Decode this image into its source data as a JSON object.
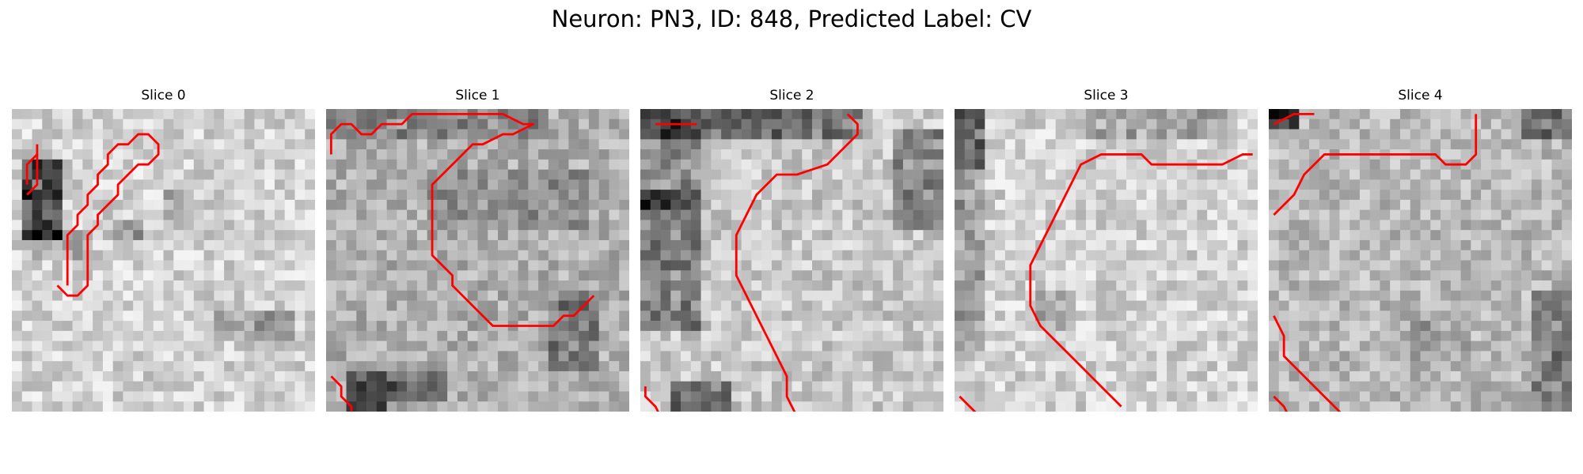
{
  "figure": {
    "title": "Neuron: PN3, ID: 848, Predicted Label: CV",
    "contour_color": "#ff0000",
    "panels": [
      {
        "title": "Slice 0",
        "seed": 11,
        "base": 210,
        "dark": [
          [
            1,
            5,
            4,
            8,
            -150
          ],
          [
            10,
            11,
            3,
            2,
            -70
          ],
          [
            2,
            12,
            6,
            3,
            -40
          ],
          [
            20,
            20,
            8,
            3,
            -55
          ],
          [
            15,
            8,
            3,
            3,
            -45
          ]
        ],
        "contours": [
          [
            [
              5,
              17
            ],
            [
              5,
              12
            ],
            [
              6,
              11
            ],
            [
              6,
              10
            ],
            [
              7,
              9
            ],
            [
              7,
              8
            ],
            [
              8,
              7
            ],
            [
              8,
              6
            ],
            [
              9,
              5
            ],
            [
              9,
              4
            ],
            [
              10,
              3
            ],
            [
              11,
              3
            ],
            [
              12,
              2
            ],
            [
              13,
              2
            ],
            [
              14,
              3
            ],
            [
              14,
              4
            ],
            [
              13,
              5
            ],
            [
              12,
              5
            ],
            [
              11,
              6
            ],
            [
              10,
              7
            ],
            [
              10,
              8
            ],
            [
              9,
              9
            ],
            [
              8,
              10
            ],
            [
              8,
              11
            ],
            [
              7,
              12
            ],
            [
              7,
              17
            ],
            [
              6,
              18
            ],
            [
              5,
              18
            ],
            [
              4,
              17
            ]
          ],
          [
            [
              1,
              7
            ],
            [
              1,
              5
            ],
            [
              2,
              4
            ],
            [
              2,
              7
            ],
            [
              1,
              8
            ]
          ],
          [
            [
              2,
              3
            ],
            [
              2,
              4
            ],
            [
              2,
              3
            ]
          ]
        ]
      },
      {
        "title": "Slice 1",
        "seed": 23,
        "base": 175,
        "dark": [
          [
            2,
            26,
            4,
            8,
            -120
          ],
          [
            6,
            26,
            6,
            3,
            -80
          ],
          [
            22,
            18,
            5,
            8,
            -60
          ],
          [
            10,
            6,
            16,
            6,
            -30
          ],
          [
            0,
            0,
            22,
            3,
            -40
          ]
        ],
        "contours": [
          [
            [
              0,
              4
            ],
            [
              0,
              2
            ],
            [
              1,
              1
            ],
            [
              2,
              1
            ],
            [
              3,
              2
            ],
            [
              4,
              2
            ],
            [
              5,
              1
            ],
            [
              7,
              1
            ],
            [
              8,
              0
            ],
            [
              13,
              0
            ],
            [
              16,
              0
            ],
            [
              17,
              0
            ],
            [
              19,
              1
            ],
            [
              20,
              1
            ],
            [
              18,
              2
            ],
            [
              17,
              2
            ],
            [
              15,
              3
            ],
            [
              14,
              3
            ],
            [
              13,
              4
            ],
            [
              12,
              5
            ],
            [
              11,
              6
            ],
            [
              10,
              7
            ],
            [
              10,
              8
            ],
            [
              10,
              10
            ],
            [
              10,
              14
            ],
            [
              11,
              15
            ],
            [
              12,
              16
            ],
            [
              12,
              17
            ],
            [
              13,
              18
            ],
            [
              14,
              19
            ],
            [
              15,
              20
            ],
            [
              16,
              21
            ],
            [
              18,
              21
            ],
            [
              19,
              21
            ],
            [
              22,
              21
            ],
            [
              23,
              20
            ],
            [
              24,
              20
            ],
            [
              25,
              19
            ],
            [
              26,
              18
            ]
          ],
          [
            [
              0,
              26
            ],
            [
              1,
              27
            ],
            [
              1,
              28
            ],
            [
              2,
              29
            ],
            [
              2,
              30
            ],
            [
              3,
              31
            ],
            [
              4,
              32
            ],
            [
              5,
              33
            ],
            [
              6,
              34
            ],
            [
              7,
              35
            ]
          ]
        ]
      },
      {
        "title": "Slice 2",
        "seed": 37,
        "base": 200,
        "dark": [
          [
            0,
            0,
            22,
            3,
            -90
          ],
          [
            0,
            0,
            6,
            10,
            -60
          ],
          [
            0,
            8,
            6,
            14,
            -80
          ],
          [
            3,
            27,
            6,
            5,
            -100
          ],
          [
            25,
            2,
            5,
            10,
            -70
          ]
        ],
        "contours": [
          [
            [
              1,
              1
            ],
            [
              5,
              1
            ],
            [
              4,
              1
            ],
            [
              1,
              1
            ]
          ],
          [
            [
              20,
              0
            ],
            [
              21,
              1
            ],
            [
              21,
              2
            ],
            [
              20,
              3
            ],
            [
              18,
              5
            ],
            [
              15,
              6
            ],
            [
              13,
              6
            ],
            [
              12,
              7
            ],
            [
              11,
              8
            ],
            [
              10,
              10
            ],
            [
              9,
              12
            ],
            [
              9,
              16
            ],
            [
              10,
              18
            ],
            [
              11,
              20
            ],
            [
              12,
              22
            ],
            [
              13,
              24
            ],
            [
              14,
              26
            ],
            [
              14,
              28
            ],
            [
              15,
              30
            ],
            [
              16,
              31
            ]
          ],
          [
            [
              0,
              27
            ],
            [
              0,
              28
            ],
            [
              1,
              29
            ],
            [
              2,
              31
            ],
            [
              3,
              32
            ]
          ]
        ]
      },
      {
        "title": "Slice 3",
        "seed": 49,
        "base": 210,
        "dark": [
          [
            0,
            0,
            3,
            6,
            -130
          ],
          [
            0,
            6,
            3,
            18,
            -60
          ],
          [
            13,
            0,
            15,
            3,
            -45
          ],
          [
            8,
            18,
            4,
            4,
            -40
          ]
        ],
        "contours": [
          [
            [
              29,
              4
            ],
            [
              28,
              4
            ],
            [
              26,
              5
            ],
            [
              24,
              5
            ],
            [
              23,
              5
            ],
            [
              21,
              5
            ],
            [
              19,
              5
            ],
            [
              18,
              4
            ],
            [
              15,
              4
            ],
            [
              14,
              4
            ],
            [
              12,
              5
            ],
            [
              11,
              7
            ],
            [
              10,
              9
            ],
            [
              9,
              11
            ],
            [
              8,
              13
            ],
            [
              7,
              15
            ],
            [
              7,
              19
            ],
            [
              8,
              21
            ],
            [
              9,
              22
            ],
            [
              10,
              23
            ],
            [
              11,
              24
            ],
            [
              12,
              25
            ],
            [
              13,
              26
            ],
            [
              14,
              27
            ],
            [
              15,
              28
            ],
            [
              16,
              29
            ]
          ],
          [
            [
              0,
              28
            ],
            [
              1,
              29
            ],
            [
              2,
              30
            ],
            [
              2,
              31
            ]
          ]
        ]
      },
      {
        "title": "Slice 4",
        "seed": 61,
        "base": 185,
        "dark": [
          [
            0,
            0,
            3,
            2,
            -150
          ],
          [
            25,
            0,
            5,
            3,
            -80
          ],
          [
            26,
            18,
            4,
            14,
            -60
          ],
          [
            14,
            20,
            6,
            5,
            -30
          ]
        ],
        "contours": [
          [
            [
              0,
              1
            ],
            [
              2,
              0
            ],
            [
              3,
              0
            ],
            [
              4,
              0
            ]
          ],
          [
            [
              20,
              0
            ],
            [
              20,
              2
            ],
            [
              20,
              4
            ],
            [
              19,
              5
            ],
            [
              17,
              5
            ],
            [
              16,
              4
            ],
            [
              14,
              4
            ],
            [
              12,
              4
            ],
            [
              10,
              4
            ],
            [
              5,
              4
            ],
            [
              4,
              5
            ],
            [
              3,
              6
            ],
            [
              2,
              8
            ],
            [
              1,
              9
            ],
            [
              0,
              10
            ]
          ],
          [
            [
              0,
              20
            ],
            [
              1,
              22
            ],
            [
              1,
              24
            ],
            [
              2,
              25
            ],
            [
              3,
              26
            ],
            [
              4,
              27
            ],
            [
              5,
              28
            ],
            [
              6,
              29
            ],
            [
              7,
              30
            ],
            [
              8,
              31
            ]
          ],
          [
            [
              0,
              28
            ],
            [
              1,
              29
            ],
            [
              2,
              31
            ],
            [
              3,
              32
            ]
          ]
        ]
      }
    ]
  }
}
